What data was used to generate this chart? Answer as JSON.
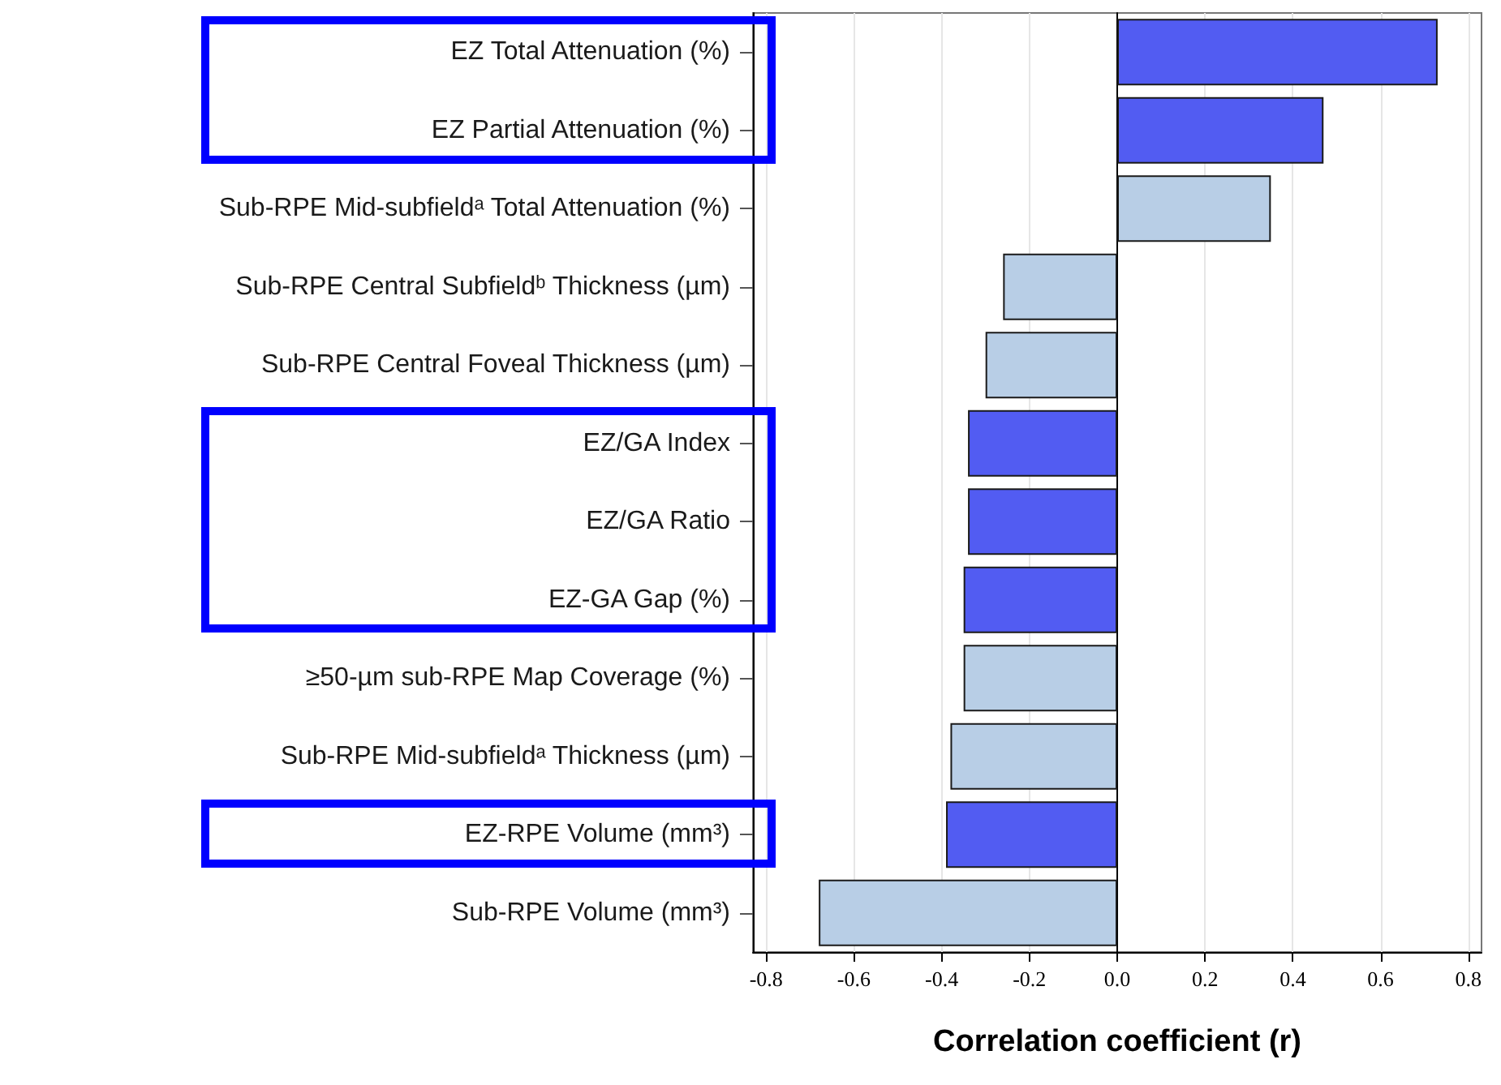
{
  "chart_data": {
    "type": "bar",
    "orientation": "horizontal",
    "xlabel": "Correlation coefficient (r)",
    "categories": [
      "EZ Total Attenuation (%)",
      "EZ Partial Attenuation (%)",
      "Sub-RPE Mid-subfieldᵃ Total Attenuation (%)",
      "Sub-RPE Central Subfieldᵇ Thickness (µm)",
      "Sub-RPE Central Foveal Thickness (µm)",
      "EZ/GA Index",
      "EZ/GA Ratio",
      "EZ-GA Gap (%)",
      "≥50-µm sub-RPE Map Coverage (%)",
      "Sub-RPE Mid-subfieldᵃ Thickness (µm)",
      "EZ-RPE Volume (mm³)",
      "Sub-RPE Volume (mm³)"
    ],
    "values": [
      0.73,
      0.47,
      0.35,
      -0.26,
      -0.3,
      -0.34,
      -0.34,
      -0.35,
      -0.35,
      -0.38,
      -0.39,
      -0.68
    ],
    "colors": [
      "#525cf2",
      "#525cf2",
      "#b8cee6",
      "#b8cee6",
      "#b8cee6",
      "#525cf2",
      "#525cf2",
      "#525cf2",
      "#b8cee6",
      "#b8cee6",
      "#525cf2",
      "#b8cee6"
    ],
    "xlim": [
      -0.83,
      0.83
    ],
    "xticks": [
      {
        "value": -0.8,
        "label": "-0.8"
      },
      {
        "value": -0.6,
        "label": "-0.6"
      },
      {
        "value": -0.4,
        "label": "-0.4"
      },
      {
        "value": -0.2,
        "label": "-0.2"
      },
      {
        "value": 0,
        "label": "0.0"
      },
      {
        "value": 0.2,
        "label": "0.2"
      },
      {
        "value": 0.4,
        "label": "0.4"
      },
      {
        "value": 0.6,
        "label": "0.6"
      },
      {
        "value": 0.8,
        "label": "0.8"
      }
    ],
    "grid": "x"
  }
}
